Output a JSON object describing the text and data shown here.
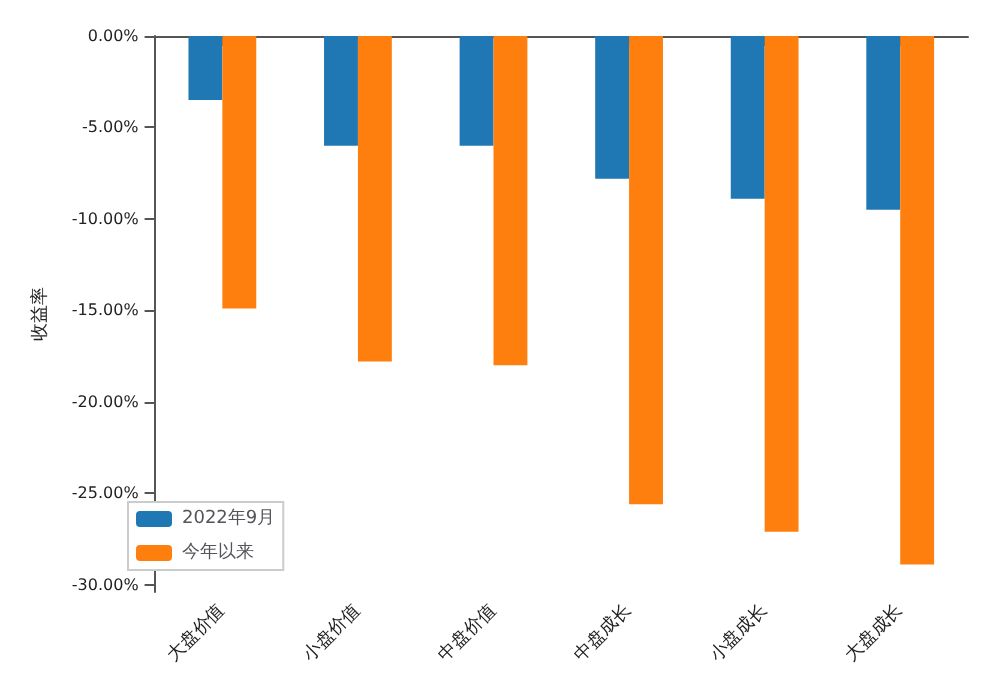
{
  "chart_data": {
    "type": "bar",
    "ylabel": "收益率",
    "categories": [
      "大盘价值",
      "小盘价值",
      "中盘价值",
      "中盘成长",
      "小盘成长",
      "大盘成长"
    ],
    "series": [
      {
        "name": "2022年9月",
        "color": "#1f77b4",
        "values": [
          -3.5,
          -6.0,
          -6.0,
          -7.8,
          -8.9,
          -9.5
        ]
      },
      {
        "name": "今年以来",
        "color": "#ff7f0e",
        "values": [
          -14.9,
          -17.8,
          -18.0,
          -25.6,
          -27.1,
          -28.9
        ]
      }
    ],
    "ylim": [
      -30.4,
      0
    ],
    "yticks": [
      {
        "value": 0,
        "label": "0.00%"
      },
      {
        "value": -5,
        "label": "-5.00%"
      },
      {
        "value": -10,
        "label": "-10.00%"
      },
      {
        "value": -15,
        "label": "-15.00%"
      },
      {
        "value": -20,
        "label": "-20.00%"
      },
      {
        "value": -25,
        "label": "-25.00%"
      },
      {
        "value": -30,
        "label": "-30.00%"
      }
    ],
    "grid": false,
    "legend": "bottom left"
  }
}
